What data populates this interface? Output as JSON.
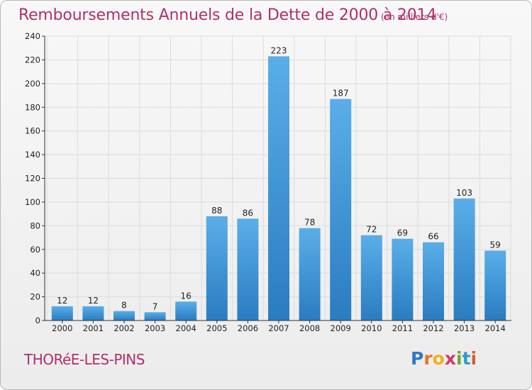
{
  "header": {
    "title": "Remboursements Annuels de la Dette de 2000 à 2014",
    "subtitle": "(en milliers d'€)"
  },
  "footer": {
    "commune": "THORéE-LES-PINS",
    "logo_text": "Proxiti"
  },
  "colors": {
    "title": "#b0306a",
    "bar_light": "#5aaee8",
    "bar_dark": "#2a7cc0",
    "grid": "#dcdcdc"
  },
  "chart_data": {
    "type": "bar",
    "title": "Remboursements Annuels de la Dette de 2000 à 2014",
    "subtitle": "(en milliers d'€)",
    "xlabel": "",
    "ylabel": "",
    "categories": [
      "2000",
      "2001",
      "2002",
      "2003",
      "2004",
      "2005",
      "2006",
      "2007",
      "2008",
      "2009",
      "2010",
      "2011",
      "2012",
      "2013",
      "2014"
    ],
    "values": [
      12,
      12,
      8,
      7,
      16,
      88,
      86,
      223,
      78,
      187,
      72,
      69,
      66,
      103,
      59
    ],
    "ylim": [
      0,
      240
    ],
    "yticks": [
      0,
      20,
      40,
      60,
      80,
      100,
      120,
      140,
      160,
      180,
      200,
      220,
      240
    ],
    "grid": true,
    "legend": "none",
    "data_labels": true
  }
}
